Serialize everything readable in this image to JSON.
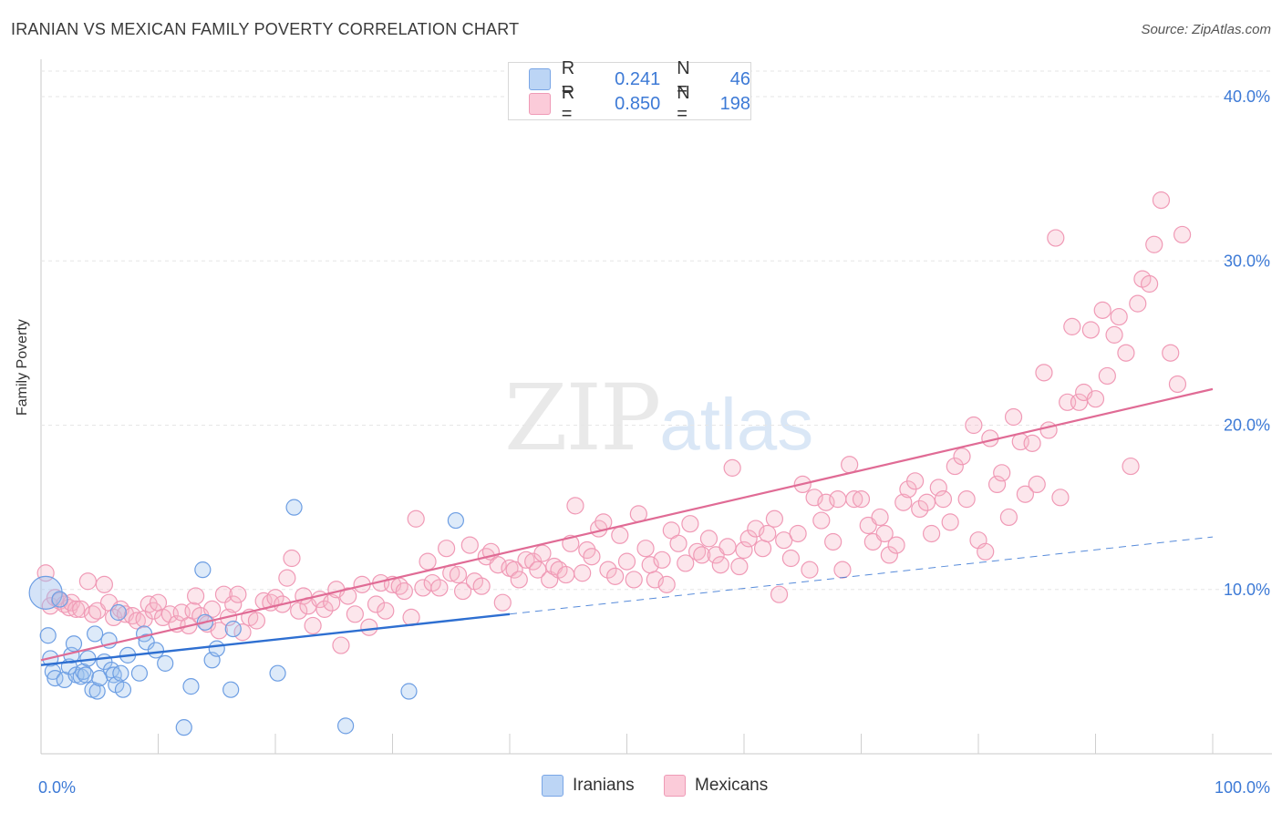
{
  "title": "IRANIAN VS MEXICAN FAMILY POVERTY CORRELATION CHART",
  "source": "Source: ZipAtlas.com",
  "watermark": {
    "zip": "ZIP",
    "atlas": "atlas"
  },
  "legend": {
    "rows": [
      {
        "r_label": "R =",
        "r_value": "0.241",
        "n_label": "N =",
        "n_value": "46",
        "color": "#9fc2ef"
      },
      {
        "r_label": "R =",
        "r_value": "0.850",
        "n_label": "N =",
        "n_value": "198",
        "color": "#f7b6c9"
      }
    ]
  },
  "bottom_legend": {
    "iranians": "Iranians",
    "mexicans": "Mexicans"
  },
  "chart_data": {
    "type": "scatter",
    "title": "IRANIAN VS MEXICAN FAMILY POVERTY CORRELATION CHART",
    "xlabel": "",
    "ylabel": "Family Poverty",
    "xlim": [
      0,
      100
    ],
    "ylim": [
      0,
      42
    ],
    "x_tick_labels": [
      "0.0%",
      "100.0%"
    ],
    "y_ticks": [
      10,
      20,
      30,
      40
    ],
    "y_tick_labels": [
      "10.0%",
      "20.0%",
      "30.0%",
      "40.0%"
    ],
    "grid": true,
    "colors": {
      "iranians": "#5b93df",
      "iranians_line": "#2e6fd1",
      "mexicans": "#ef8fae",
      "mexicans_line": "#e06b95"
    },
    "series": [
      {
        "name": "Iranians",
        "r": 0.241,
        "n": 46,
        "trend": {
          "x0": 0,
          "y0": 5.4,
          "x1": 40,
          "y1": 8.5,
          "dashed_to_x": 100,
          "dashed_to_y": 13.2
        },
        "points": [
          [
            0.4,
            9.8
          ],
          [
            0.6,
            7.2
          ],
          [
            0.8,
            5.8
          ],
          [
            1,
            5
          ],
          [
            1.2,
            4.6
          ],
          [
            1.6,
            9.4
          ],
          [
            2,
            4.5
          ],
          [
            2.4,
            5.3
          ],
          [
            2.6,
            6
          ],
          [
            2.8,
            6.7
          ],
          [
            3,
            4.8
          ],
          [
            3.4,
            4.7
          ],
          [
            3.6,
            5
          ],
          [
            3.8,
            4.8
          ],
          [
            4,
            5.8
          ],
          [
            4.4,
            3.9
          ],
          [
            4.6,
            7.3
          ],
          [
            4.8,
            3.8
          ],
          [
            5,
            4.6
          ],
          [
            5.4,
            5.6
          ],
          [
            5.8,
            6.9
          ],
          [
            6,
            5.1
          ],
          [
            6.2,
            4.8
          ],
          [
            6.4,
            4.2
          ],
          [
            6.6,
            8.6
          ],
          [
            6.8,
            4.9
          ],
          [
            7,
            3.9
          ],
          [
            7.4,
            6
          ],
          [
            8.4,
            4.9
          ],
          [
            8.8,
            7.3
          ],
          [
            9,
            6.8
          ],
          [
            9.8,
            6.3
          ],
          [
            10.6,
            5.5
          ],
          [
            12.2,
            1.6
          ],
          [
            12.8,
            4.1
          ],
          [
            13.8,
            11.2
          ],
          [
            14,
            8
          ],
          [
            14.6,
            5.7
          ],
          [
            15,
            6.4
          ],
          [
            16.2,
            3.9
          ],
          [
            16.4,
            7.6
          ],
          [
            20.2,
            4.9
          ],
          [
            21.6,
            15
          ],
          [
            26,
            1.7
          ],
          [
            31.4,
            3.8
          ],
          [
            35.4,
            14.2
          ]
        ]
      },
      {
        "name": "Mexicans",
        "r": 0.85,
        "n": 198,
        "trend": {
          "x0": 0,
          "y0": 5.7,
          "x1": 100,
          "y1": 22.2
        },
        "points": [
          [
            0.4,
            11
          ],
          [
            0.8,
            9
          ],
          [
            1.2,
            9.5
          ],
          [
            1.6,
            9.3
          ],
          [
            2,
            9.1
          ],
          [
            2.4,
            8.9
          ],
          [
            2.6,
            9.2
          ],
          [
            3,
            8.8
          ],
          [
            3.4,
            8.8
          ],
          [
            4,
            10.5
          ],
          [
            4.4,
            8.5
          ],
          [
            4.8,
            8.7
          ],
          [
            5.4,
            10.3
          ],
          [
            5.8,
            9.2
          ],
          [
            6.2,
            8.3
          ],
          [
            6.8,
            8.8
          ],
          [
            7.2,
            8.5
          ],
          [
            7.8,
            8.4
          ],
          [
            8.2,
            8.1
          ],
          [
            8.8,
            8.2
          ],
          [
            9.2,
            9.1
          ],
          [
            9.6,
            8.7
          ],
          [
            10,
            9.2
          ],
          [
            10.4,
            8.3
          ],
          [
            11,
            8.5
          ],
          [
            11.6,
            7.9
          ],
          [
            12,
            8.6
          ],
          [
            12.6,
            7.8
          ],
          [
            13,
            8.7
          ],
          [
            13.2,
            9.6
          ],
          [
            13.6,
            8.4
          ],
          [
            14.2,
            7.9
          ],
          [
            14.6,
            8.8
          ],
          [
            15.2,
            7.5
          ],
          [
            15.6,
            9.7
          ],
          [
            16,
            8.3
          ],
          [
            16.4,
            9.1
          ],
          [
            16.8,
            9.7
          ],
          [
            17.2,
            7.4
          ],
          [
            17.8,
            8.3
          ],
          [
            18.4,
            8.1
          ],
          [
            19,
            9.3
          ],
          [
            19.6,
            9.2
          ],
          [
            20,
            9.5
          ],
          [
            20.6,
            9.1
          ],
          [
            21,
            10.7
          ],
          [
            21.4,
            11.9
          ],
          [
            22,
            8.7
          ],
          [
            22.4,
            9.6
          ],
          [
            22.8,
            9
          ],
          [
            23.2,
            7.8
          ],
          [
            23.8,
            9.4
          ],
          [
            24.2,
            8.8
          ],
          [
            24.8,
            9.2
          ],
          [
            25.2,
            10
          ],
          [
            25.6,
            6.6
          ],
          [
            26.2,
            9.6
          ],
          [
            26.8,
            8.5
          ],
          [
            27.4,
            10.3
          ],
          [
            28,
            7.7
          ],
          [
            28.6,
            9.1
          ],
          [
            29,
            10.4
          ],
          [
            29.4,
            8.7
          ],
          [
            30,
            10.3
          ],
          [
            30.6,
            10.2
          ],
          [
            31,
            9.9
          ],
          [
            31.6,
            8.3
          ],
          [
            32,
            14.3
          ],
          [
            32.6,
            10.1
          ],
          [
            33,
            11.7
          ],
          [
            33.4,
            10.4
          ],
          [
            34,
            10.1
          ],
          [
            34.6,
            12.5
          ],
          [
            35,
            11
          ],
          [
            35.6,
            10.9
          ],
          [
            36,
            9.9
          ],
          [
            36.6,
            12.7
          ],
          [
            37,
            10.5
          ],
          [
            37.6,
            10.2
          ],
          [
            38,
            12
          ],
          [
            38.4,
            12.3
          ],
          [
            39,
            11.5
          ],
          [
            39.4,
            9.2
          ],
          [
            40,
            11.3
          ],
          [
            40.4,
            11.2
          ],
          [
            40.8,
            10.6
          ],
          [
            41.4,
            11.8
          ],
          [
            42,
            11.7
          ],
          [
            42.4,
            11.2
          ],
          [
            42.8,
            12.2
          ],
          [
            43.4,
            10.6
          ],
          [
            43.8,
            11.4
          ],
          [
            44.2,
            11.2
          ],
          [
            44.8,
            10.9
          ],
          [
            45.2,
            12.8
          ],
          [
            45.6,
            15.1
          ],
          [
            46.2,
            11
          ],
          [
            46.6,
            12.4
          ],
          [
            47,
            12
          ],
          [
            47.6,
            13.7
          ],
          [
            48,
            14.1
          ],
          [
            48.4,
            11.2
          ],
          [
            49,
            10.8
          ],
          [
            49.4,
            13.3
          ],
          [
            50,
            11.7
          ],
          [
            50.6,
            10.6
          ],
          [
            51,
            14.6
          ],
          [
            51.6,
            12.5
          ],
          [
            52,
            11.5
          ],
          [
            52.4,
            10.6
          ],
          [
            53,
            11.8
          ],
          [
            53.4,
            10.3
          ],
          [
            53.8,
            13.6
          ],
          [
            54.4,
            12.8
          ],
          [
            55,
            11.6
          ],
          [
            55.4,
            14
          ],
          [
            56,
            12.3
          ],
          [
            56.4,
            12.1
          ],
          [
            57,
            13.1
          ],
          [
            57.6,
            12.1
          ],
          [
            58,
            11.5
          ],
          [
            58.6,
            12.6
          ],
          [
            59,
            17.4
          ],
          [
            59.6,
            11.4
          ],
          [
            60,
            12.4
          ],
          [
            60.4,
            13.1
          ],
          [
            61,
            13.7
          ],
          [
            61.6,
            12.5
          ],
          [
            62,
            13.4
          ],
          [
            62.6,
            14.3
          ],
          [
            63,
            9.7
          ],
          [
            63.4,
            13
          ],
          [
            64,
            11.9
          ],
          [
            64.6,
            13.4
          ],
          [
            65,
            16.4
          ],
          [
            65.6,
            11.2
          ],
          [
            66,
            15.6
          ],
          [
            66.6,
            14.2
          ],
          [
            67,
            15.3
          ],
          [
            67.6,
            12.9
          ],
          [
            68,
            15.5
          ],
          [
            68.4,
            11.2
          ],
          [
            69,
            17.6
          ],
          [
            69.4,
            15.5
          ],
          [
            70,
            15.5
          ],
          [
            70.6,
            13.9
          ],
          [
            71,
            12.9
          ],
          [
            71.6,
            14.4
          ],
          [
            72,
            13.4
          ],
          [
            72.4,
            12.1
          ],
          [
            73,
            12.7
          ],
          [
            73.6,
            15.3
          ],
          [
            74,
            16.1
          ],
          [
            74.6,
            16.6
          ],
          [
            75,
            14.9
          ],
          [
            75.6,
            15.3
          ],
          [
            76,
            13.4
          ],
          [
            76.6,
            16.2
          ],
          [
            77,
            15.5
          ],
          [
            77.6,
            14.1
          ],
          [
            78,
            17.5
          ],
          [
            78.6,
            18.1
          ],
          [
            79,
            15.5
          ],
          [
            79.6,
            20
          ],
          [
            80,
            13
          ],
          [
            80.6,
            12.3
          ],
          [
            81,
            19.2
          ],
          [
            81.6,
            16.4
          ],
          [
            82,
            17.1
          ],
          [
            82.6,
            14.4
          ],
          [
            83,
            20.5
          ],
          [
            83.6,
            19
          ],
          [
            84,
            15.8
          ],
          [
            84.6,
            18.9
          ],
          [
            85,
            16.4
          ],
          [
            85.6,
            23.2
          ],
          [
            86,
            19.7
          ],
          [
            86.6,
            31.4
          ],
          [
            87,
            15.6
          ],
          [
            87.6,
            21.4
          ],
          [
            88,
            26
          ],
          [
            88.6,
            21.4
          ],
          [
            89,
            22
          ],
          [
            89.6,
            25.8
          ],
          [
            90,
            21.6
          ],
          [
            90.6,
            27
          ],
          [
            91,
            23
          ],
          [
            91.6,
            25.5
          ],
          [
            92,
            26.6
          ],
          [
            92.6,
            24.4
          ],
          [
            93,
            17.5
          ],
          [
            93.6,
            27.4
          ],
          [
            94,
            28.9
          ],
          [
            94.6,
            28.6
          ],
          [
            95,
            31
          ],
          [
            95.6,
            33.7
          ],
          [
            96.4,
            24.4
          ],
          [
            97,
            22.5
          ],
          [
            97.4,
            31.6
          ]
        ]
      }
    ]
  }
}
